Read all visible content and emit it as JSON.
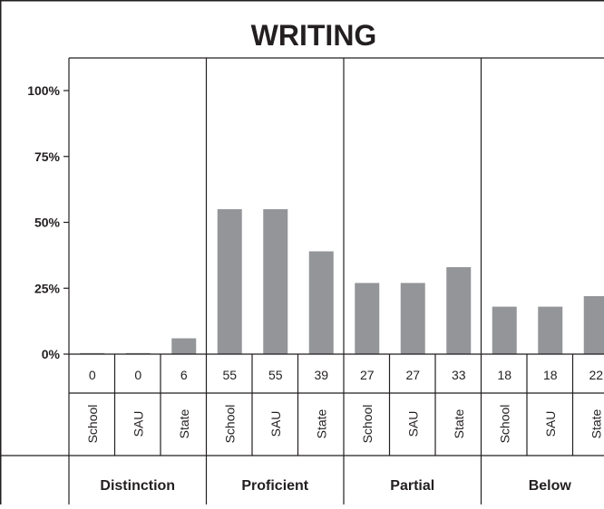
{
  "chart_data": {
    "type": "bar",
    "title": "WRITING",
    "xlabel": "",
    "ylabel": "",
    "ylim": [
      0,
      100
    ],
    "yticks": [
      {
        "value": 0,
        "label": "0%"
      },
      {
        "value": 25,
        "label": "25%"
      },
      {
        "value": 50,
        "label": "50%"
      },
      {
        "value": 75,
        "label": "75%"
      },
      {
        "value": 100,
        "label": "100%"
      }
    ],
    "grid": false,
    "bar_color": "#939598",
    "categories": [
      "Distinction",
      "Proficient",
      "Partial",
      "Below"
    ],
    "sub_categories": [
      "School",
      "SAU",
      "State"
    ],
    "values": [
      [
        0,
        0,
        6
      ],
      [
        55,
        55,
        39
      ],
      [
        27,
        27,
        33
      ],
      [
        18,
        18,
        22
      ]
    ],
    "value_labels": [
      [
        "0",
        "0",
        "6"
      ],
      [
        "55",
        "55",
        "39"
      ],
      [
        "27",
        "27",
        "33"
      ],
      [
        "18",
        "18",
        "22"
      ]
    ]
  }
}
